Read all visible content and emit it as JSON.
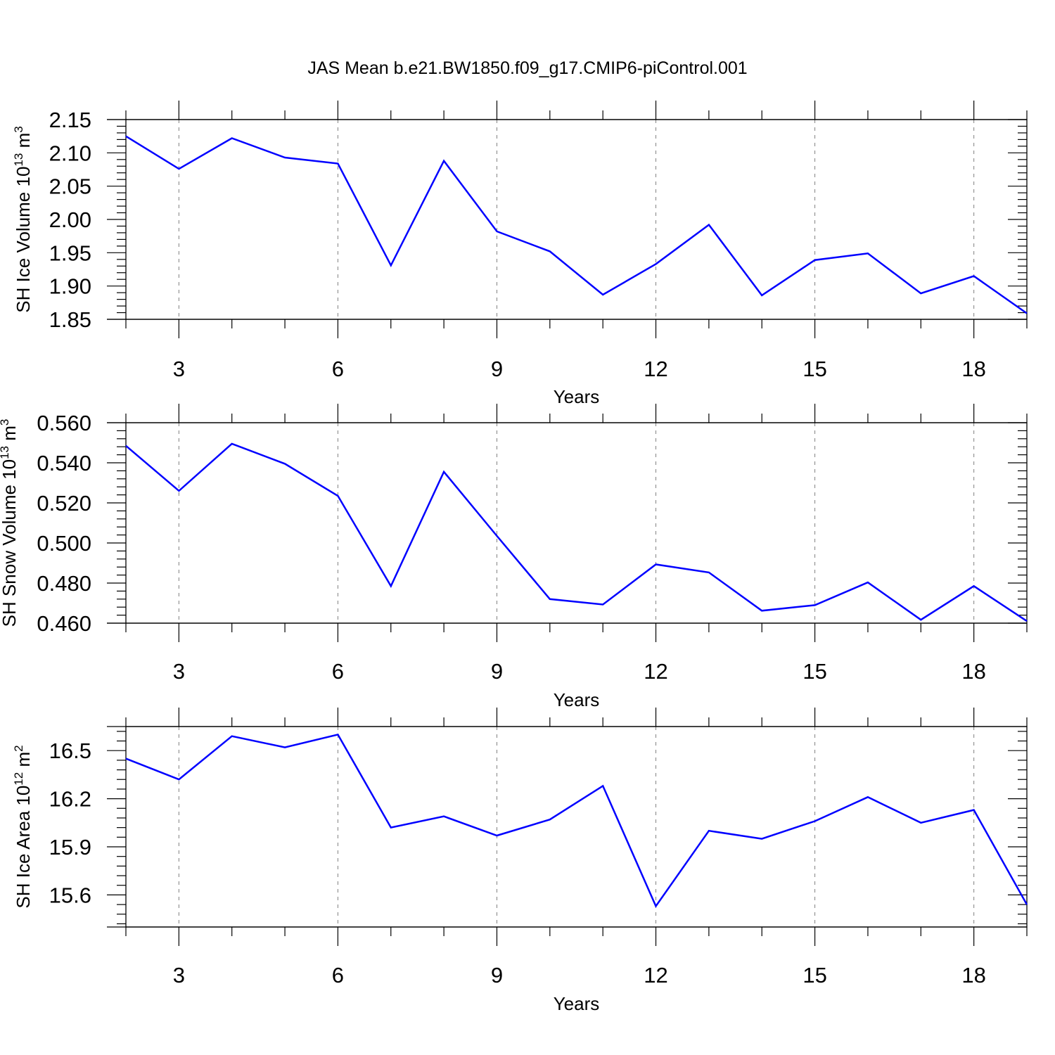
{
  "title": "JAS Mean b.e21.BW1850.f09_g17.CMIP6-piControl.001",
  "colors": {
    "line": "#0000ff",
    "axis": "#000000",
    "grid": "#808080"
  },
  "chart_data": [
    {
      "type": "line",
      "ylabel": {
        "text": "SH Ice Volume 10",
        "sup": "13",
        "unit": " m",
        "unit_sup": "3"
      },
      "xlabel": "Years",
      "xlim": [
        2,
        19
      ],
      "ylim": [
        1.85,
        2.15
      ],
      "xticks": [
        3,
        6,
        9,
        12,
        15,
        18
      ],
      "xtick_labels": [
        "3",
        "6",
        "9",
        "12",
        "15",
        "18"
      ],
      "yticks": [
        1.85,
        1.9,
        1.95,
        2.0,
        2.05,
        2.1,
        2.15
      ],
      "ytick_labels": [
        "1.85",
        "1.90",
        "1.95",
        "2.00",
        "2.05",
        "2.10",
        "2.15"
      ],
      "grid": "vertical dashed at major x ticks",
      "x": [
        2,
        3,
        4,
        5,
        6,
        7,
        8,
        9,
        10,
        11,
        12,
        13,
        14,
        15,
        16,
        17,
        18,
        19
      ],
      "series": [
        {
          "values": [
            2.125,
            2.076,
            2.122,
            2.093,
            2.084,
            1.931,
            2.088,
            1.982,
            1.952,
            1.887,
            1.933,
            1.992,
            1.886,
            1.939,
            1.949,
            1.889,
            1.915,
            1.859
          ]
        }
      ]
    },
    {
      "type": "line",
      "ylabel": {
        "text": "SH Snow Volume 10",
        "sup": "13",
        "unit": " m",
        "unit_sup": "3"
      },
      "xlabel": "Years",
      "xlim": [
        2,
        19
      ],
      "ylim": [
        0.46,
        0.56
      ],
      "xticks": [
        3,
        6,
        9,
        12,
        15,
        18
      ],
      "xtick_labels": [
        "3",
        "6",
        "9",
        "12",
        "15",
        "18"
      ],
      "yticks": [
        0.46,
        0.48,
        0.5,
        0.52,
        0.54,
        0.56
      ],
      "ytick_labels": [
        "0.460",
        "0.480",
        "0.500",
        "0.520",
        "0.540",
        "0.560"
      ],
      "grid": "vertical dashed at major x ticks",
      "x": [
        2,
        3,
        4,
        5,
        6,
        7,
        8,
        9,
        10,
        11,
        12,
        13,
        14,
        15,
        16,
        17,
        18,
        19
      ],
      "series": [
        {
          "values": [
            0.5485,
            0.526,
            0.5495,
            0.5395,
            0.5235,
            0.4785,
            0.5355,
            0.5035,
            0.472,
            0.4693,
            0.4893,
            0.4853,
            0.4662,
            0.469,
            0.4803,
            0.4617,
            0.4785,
            0.461
          ]
        }
      ]
    },
    {
      "type": "line",
      "ylabel": {
        "text": "SH Ice Area 10",
        "sup": "12",
        "unit": " m",
        "unit_sup": "2"
      },
      "xlabel": "Years",
      "xlim": [
        2,
        19
      ],
      "ylim": [
        15.4,
        16.65
      ],
      "xticks": [
        3,
        6,
        9,
        12,
        15,
        18
      ],
      "xtick_labels": [
        "3",
        "6",
        "9",
        "12",
        "15",
        "18"
      ],
      "yticks": [
        15.6,
        15.9,
        16.2,
        16.5
      ],
      "ytick_labels": [
        "15.6",
        "15.9",
        "16.2",
        "16.5"
      ],
      "grid": "vertical dashed at major x ticks",
      "x": [
        2,
        3,
        4,
        5,
        6,
        7,
        8,
        9,
        10,
        11,
        12,
        13,
        14,
        15,
        16,
        17,
        18,
        19
      ],
      "series": [
        {
          "values": [
            16.45,
            16.32,
            16.59,
            16.52,
            16.6,
            16.02,
            16.09,
            15.97,
            16.07,
            16.28,
            15.53,
            16.0,
            15.95,
            16.06,
            16.21,
            16.05,
            16.13,
            15.54
          ]
        }
      ]
    }
  ]
}
